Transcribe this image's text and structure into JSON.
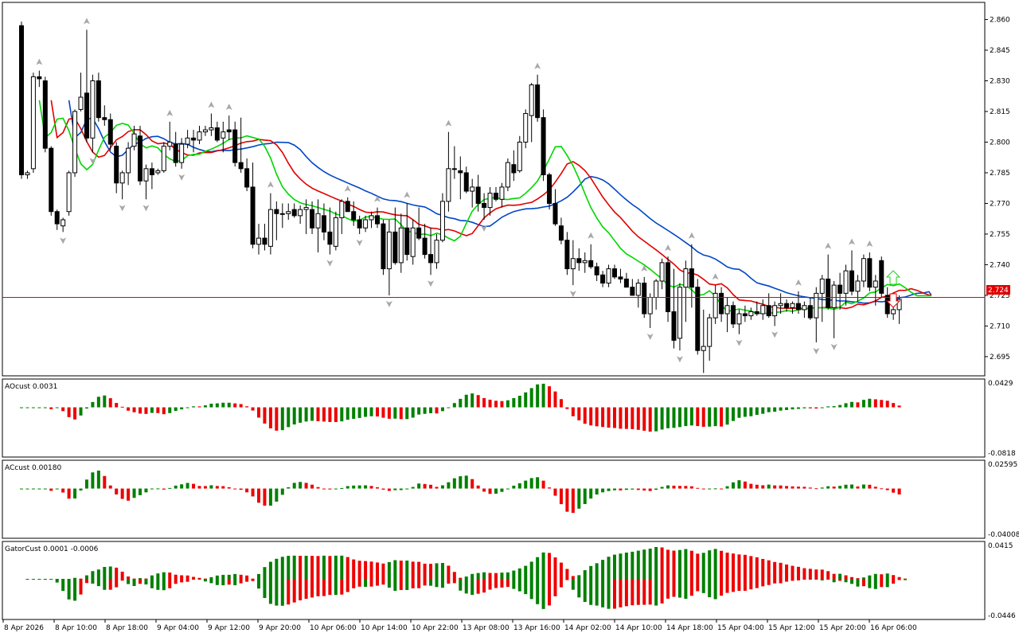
{
  "colors": {
    "background": "#ffffff",
    "frame": "#000000",
    "bull_fill": "#ffffff",
    "bear_fill": "#000000",
    "lips": "#00d600",
    "teeth": "#e00000",
    "jaw": "#0046c8",
    "current_price_line": "#e00000",
    "osc_up": "#008000",
    "osc_down": "#ee0000",
    "fractal": "#a8a8a8",
    "arrow_up": "#22cc22",
    "arrow_down": "#e00000"
  },
  "price_pane": {
    "current_price": "2.724",
    "y_ticks": [
      "2.860",
      "2.845",
      "2.830",
      "2.815",
      "2.800",
      "2.785",
      "2.770",
      "2.755",
      "2.740",
      "2.725",
      "2.710",
      "2.695"
    ],
    "dashed_marker": "previous close"
  },
  "ao_pane": {
    "title": "AOcust 0.0031",
    "y_top": "0.0429",
    "y_bottom": "-0.0818"
  },
  "ac_pane": {
    "title": "ACcust 0.00180",
    "y_top": "0.02595",
    "y_bottom": "-0.04008"
  },
  "gator_pane": {
    "title": "GatorCust 0.0001 -0.0006",
    "y_top": "0.0415",
    "y_bottom": "-0.0446"
  },
  "time_axis": [
    "8 Apr 2026",
    "8 Apr 10:00",
    "8 Apr 18:00",
    "9 Apr 04:00",
    "9 Apr 12:00",
    "9 Apr 20:00",
    "10 Apr 06:00",
    "10 Apr 14:00",
    "10 Apr 22:00",
    "13 Apr 08:00",
    "13 Apr 16:00",
    "14 Apr 02:00",
    "14 Apr 10:00",
    "14 Apr 18:00",
    "15 Apr 04:00",
    "15 Apr 12:00",
    "15 Apr 20:00",
    "16 Apr 06:00"
  ],
  "chart_data": {
    "type": "candlestick",
    "symbol_pane_indicators": [
      "Alligator (jaw blue, teeth red, lips green)",
      "Fractals"
    ],
    "price_range": [
      2.686,
      2.868
    ],
    "current_price": 2.724,
    "candles_ohlc": [
      [
        2.857,
        2.859,
        2.782,
        2.784
      ],
      [
        2.784,
        2.786,
        2.782,
        2.785
      ],
      [
        2.787,
        2.834,
        2.785,
        2.832
      ],
      [
        2.832,
        2.835,
        2.827,
        2.831
      ],
      [
        2.83,
        2.832,
        2.795,
        2.797
      ],
      [
        2.797,
        2.798,
        2.764,
        2.766
      ],
      [
        2.766,
        2.767,
        2.757,
        2.76
      ],
      [
        2.759,
        2.763,
        2.756,
        2.762
      ],
      [
        2.766,
        2.786,
        2.764,
        2.785
      ],
      [
        2.785,
        2.816,
        2.783,
        2.815
      ],
      [
        2.816,
        2.834,
        2.815,
        2.822
      ],
      [
        2.824,
        2.855,
        2.8,
        2.802
      ],
      [
        2.802,
        2.833,
        2.795,
        2.83
      ],
      [
        2.83,
        2.834,
        2.81,
        2.812
      ],
      [
        2.812,
        2.818,
        2.808,
        2.811
      ],
      [
        2.811,
        2.814,
        2.796,
        2.799
      ],
      [
        2.798,
        2.8,
        2.775,
        2.78
      ],
      [
        2.78,
        2.786,
        2.772,
        2.785
      ],
      [
        2.785,
        2.8,
        2.779,
        2.797
      ],
      [
        2.798,
        2.808,
        2.796,
        2.804
      ],
      [
        2.803,
        2.808,
        2.779,
        2.781
      ],
      [
        2.781,
        2.789,
        2.772,
        2.787
      ],
      [
        2.787,
        2.79,
        2.777,
        2.784
      ],
      [
        2.785,
        2.787,
        2.784,
        2.786
      ],
      [
        2.786,
        2.8,
        2.785,
        2.798
      ],
      [
        2.798,
        2.81,
        2.796,
        2.8
      ],
      [
        2.799,
        2.805,
        2.788,
        2.79
      ],
      [
        2.79,
        2.802,
        2.787,
        2.799
      ],
      [
        2.799,
        2.806,
        2.797,
        2.802
      ],
      [
        2.802,
        2.806,
        2.795,
        2.801
      ],
      [
        2.801,
        2.808,
        2.799,
        2.805
      ],
      [
        2.805,
        2.808,
        2.803,
        2.806
      ],
      [
        2.806,
        2.814,
        2.803,
        2.807
      ],
      [
        2.807,
        2.81,
        2.8,
        2.801
      ],
      [
        2.802,
        2.81,
        2.795,
        2.805
      ],
      [
        2.806,
        2.813,
        2.801,
        2.805
      ],
      [
        2.806,
        2.81,
        2.788,
        2.79
      ],
      [
        2.79,
        2.812,
        2.785,
        2.787
      ],
      [
        2.787,
        2.792,
        2.776,
        2.778
      ],
      [
        2.778,
        2.79,
        2.748,
        2.75
      ],
      [
        2.75,
        2.76,
        2.745,
        2.753
      ],
      [
        2.753,
        2.76,
        2.747,
        2.75
      ],
      [
        2.749,
        2.775,
        2.745,
        2.767
      ],
      [
        2.767,
        2.771,
        2.752,
        2.765
      ],
      [
        2.765,
        2.77,
        2.758,
        2.765
      ],
      [
        2.765,
        2.77,
        2.762,
        2.766
      ],
      [
        2.767,
        2.77,
        2.763,
        2.764
      ],
      [
        2.764,
        2.769,
        2.76,
        2.767
      ],
      [
        2.767,
        2.772,
        2.755,
        2.768
      ],
      [
        2.767,
        2.771,
        2.755,
        2.758
      ],
      [
        2.758,
        2.772,
        2.746,
        2.765
      ],
      [
        2.764,
        2.77,
        2.752,
        2.756
      ],
      [
        2.756,
        2.768,
        2.745,
        2.75
      ],
      [
        2.749,
        2.766,
        2.747,
        2.763
      ],
      [
        2.763,
        2.772,
        2.755,
        2.771
      ],
      [
        2.771,
        2.773,
        2.766,
        2.766
      ],
      [
        2.766,
        2.771,
        2.759,
        2.762
      ],
      [
        2.762,
        2.764,
        2.755,
        2.758
      ],
      [
        2.758,
        2.764,
        2.756,
        2.762
      ],
      [
        2.762,
        2.766,
        2.758,
        2.764
      ],
      [
        2.764,
        2.768,
        2.758,
        2.76
      ],
      [
        2.76,
        2.762,
        2.735,
        2.738
      ],
      [
        2.738,
        2.762,
        2.725,
        2.756
      ],
      [
        2.756,
        2.768,
        2.74,
        2.741
      ],
      [
        2.741,
        2.765,
        2.736,
        2.758
      ],
      [
        2.758,
        2.77,
        2.742,
        2.745
      ],
      [
        2.744,
        2.762,
        2.74,
        2.758
      ],
      [
        2.758,
        2.768,
        2.752,
        2.753
      ],
      [
        2.753,
        2.76,
        2.743,
        2.745
      ],
      [
        2.745,
        2.758,
        2.735,
        2.741
      ],
      [
        2.741,
        2.755,
        2.738,
        2.752
      ],
      [
        2.752,
        2.775,
        2.751,
        2.771
      ],
      [
        2.771,
        2.805,
        2.766,
        2.787
      ],
      [
        2.787,
        2.798,
        2.782,
        2.787
      ],
      [
        2.786,
        2.793,
        2.772,
        2.785
      ],
      [
        2.785,
        2.788,
        2.775,
        2.776
      ],
      [
        2.776,
        2.782,
        2.768,
        2.778
      ],
      [
        2.778,
        2.784,
        2.766,
        2.77
      ],
      [
        2.77,
        2.775,
        2.762,
        2.768
      ],
      [
        2.768,
        2.778,
        2.764,
        2.775
      ],
      [
        2.775,
        2.778,
        2.771,
        2.772
      ],
      [
        2.772,
        2.78,
        2.768,
        2.778
      ],
      [
        2.778,
        2.792,
        2.776,
        2.79
      ],
      [
        2.789,
        2.796,
        2.781,
        2.785
      ],
      [
        2.786,
        2.803,
        2.785,
        2.8
      ],
      [
        2.8,
        2.816,
        2.797,
        2.814
      ],
      [
        2.813,
        2.829,
        2.8,
        2.828
      ],
      [
        2.828,
        2.833,
        2.81,
        2.812
      ],
      [
        2.812,
        2.816,
        2.781,
        2.784
      ],
      [
        2.784,
        2.785,
        2.767,
        2.77
      ],
      [
        2.77,
        2.777,
        2.759,
        2.76
      ],
      [
        2.759,
        2.763,
        2.75,
        2.752
      ],
      [
        2.752,
        2.756,
        2.735,
        2.738
      ],
      [
        2.738,
        2.752,
        2.73,
        2.743
      ],
      [
        2.743,
        2.748,
        2.737,
        2.741
      ],
      [
        2.741,
        2.746,
        2.736,
        2.742
      ],
      [
        2.742,
        2.75,
        2.738,
        2.739
      ],
      [
        2.739,
        2.741,
        2.732,
        2.735
      ],
      [
        2.735,
        2.737,
        2.729,
        2.731
      ],
      [
        2.731,
        2.74,
        2.729,
        2.738
      ],
      [
        2.738,
        2.74,
        2.733,
        2.734
      ],
      [
        2.734,
        2.738,
        2.731,
        2.733
      ],
      [
        2.733,
        2.736,
        2.729,
        2.729
      ],
      [
        2.729,
        2.733,
        2.725,
        2.725
      ],
      [
        2.725,
        2.733,
        2.719,
        2.731
      ],
      [
        2.731,
        2.734,
        2.714,
        2.716
      ],
      [
        2.716,
        2.726,
        2.709,
        2.724
      ],
      [
        2.724,
        2.733,
        2.718,
        2.732
      ],
      [
        2.732,
        2.743,
        2.728,
        2.741
      ],
      [
        2.741,
        2.744,
        2.712,
        2.717
      ],
      [
        2.717,
        2.738,
        2.699,
        2.703
      ],
      [
        2.704,
        2.731,
        2.698,
        2.729
      ],
      [
        2.729,
        2.742,
        2.712,
        2.738
      ],
      [
        2.738,
        2.75,
        2.719,
        2.729
      ],
      [
        2.729,
        2.733,
        2.696,
        2.698
      ],
      [
        2.698,
        2.718,
        2.687,
        2.7
      ],
      [
        2.7,
        2.716,
        2.693,
        2.714
      ],
      [
        2.714,
        2.73,
        2.711,
        2.726
      ],
      [
        2.726,
        2.729,
        2.712,
        2.716
      ],
      [
        2.716,
        2.724,
        2.707,
        2.72
      ],
      [
        2.72,
        2.722,
        2.709,
        2.711
      ],
      [
        2.711,
        2.718,
        2.706,
        2.716
      ],
      [
        2.716,
        2.72,
        2.712,
        2.715
      ],
      [
        2.715,
        2.719,
        2.713,
        2.717
      ],
      [
        2.717,
        2.722,
        2.715,
        2.716
      ],
      [
        2.716,
        2.723,
        2.713,
        2.72
      ],
      [
        2.72,
        2.726,
        2.714,
        2.715
      ],
      [
        2.715,
        2.722,
        2.71,
        2.72
      ],
      [
        2.72,
        2.726,
        2.716,
        2.721
      ],
      [
        2.721,
        2.723,
        2.717,
        2.719
      ],
      [
        2.719,
        2.722,
        2.716,
        2.721
      ],
      [
        2.721,
        2.727,
        2.716,
        2.718
      ],
      [
        2.718,
        2.722,
        2.714,
        2.72
      ],
      [
        2.72,
        2.724,
        2.713,
        2.714
      ],
      [
        2.714,
        2.729,
        2.702,
        2.726
      ],
      [
        2.726,
        2.735,
        2.712,
        2.733
      ],
      [
        2.733,
        2.745,
        2.718,
        2.719
      ],
      [
        2.719,
        2.732,
        2.704,
        2.73
      ],
      [
        2.73,
        2.736,
        2.718,
        2.726
      ],
      [
        2.726,
        2.74,
        2.72,
        2.737
      ],
      [
        2.737,
        2.747,
        2.725,
        2.727
      ],
      [
        2.727,
        2.735,
        2.722,
        2.732
      ],
      [
        2.732,
        2.745,
        2.729,
        2.743
      ],
      [
        2.743,
        2.746,
        2.727,
        2.729
      ],
      [
        2.729,
        2.735,
        2.72,
        2.732
      ],
      [
        2.742,
        2.744,
        2.724,
        2.726
      ],
      [
        2.725,
        2.729,
        2.714,
        2.716
      ],
      [
        2.716,
        2.722,
        2.713,
        2.718
      ],
      [
        2.718,
        2.725,
        2.711,
        2.723
      ]
    ],
    "current_price_level": 2.724
  }
}
